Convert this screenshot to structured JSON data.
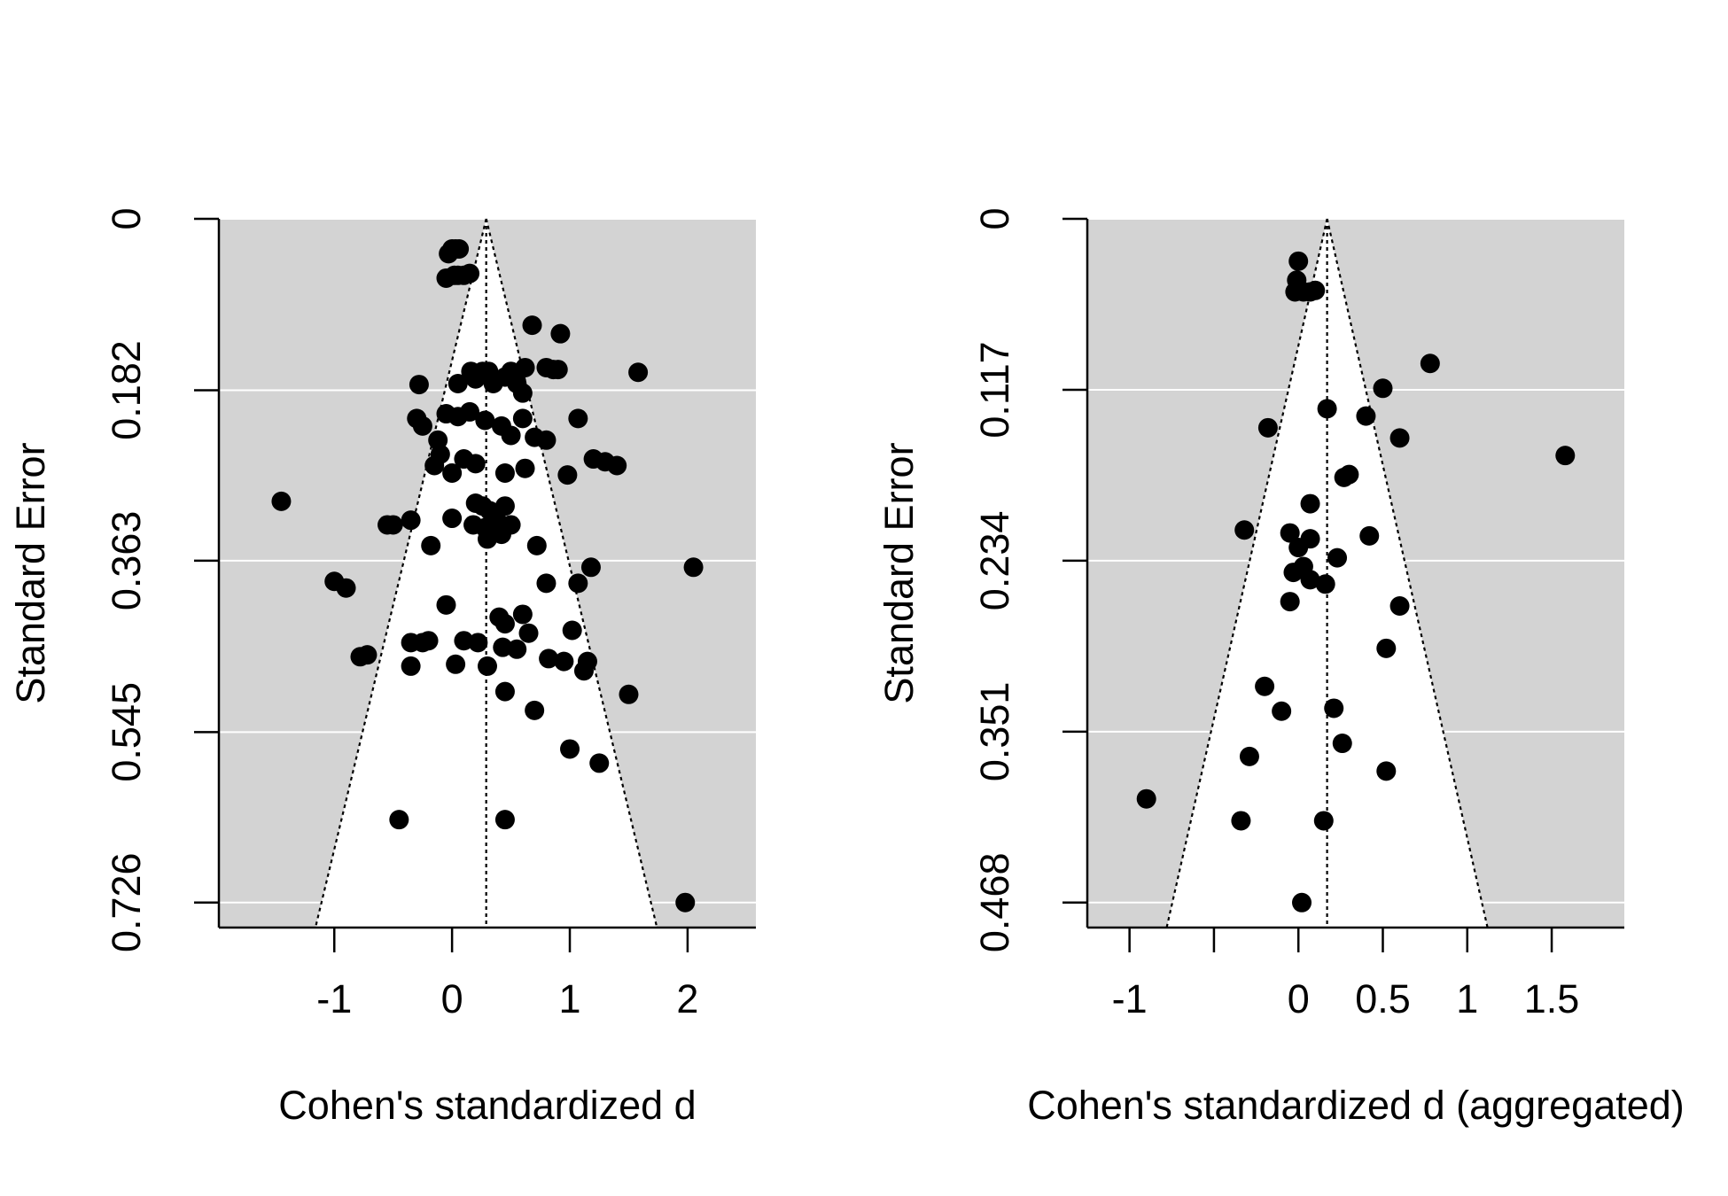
{
  "colors": {
    "panel_bg": "#d3d3d3",
    "funnel": "#ffffff",
    "points": "#000000",
    "axis": "#000000"
  },
  "chart_data": [
    {
      "type": "scatter",
      "subtype": "funnel",
      "xlabel": "Cohen's standardized d",
      "ylabel": "Standard Error",
      "xlim": [
        -1.98,
        2.58
      ],
      "ylim": [
        0.7526,
        0
      ],
      "x_ticks": [
        -1,
        0,
        1,
        2
      ],
      "x_tick_labels": [
        "-1",
        "0",
        "1",
        "2"
      ],
      "x_tick_marks": [
        -1,
        0,
        1,
        2
      ],
      "y_ticks": [
        0,
        0.182,
        0.363,
        0.545,
        0.726
      ],
      "y_tick_labels": [
        "0",
        "0.182",
        "0.363",
        "0.545",
        "0.726"
      ],
      "estimate": 0.29,
      "funnel_half_width_at_max_se": 1.45,
      "funnel_max_se": 0.7526,
      "points": [
        [
          0,
          0.032
        ],
        [
          0.03,
          0.032
        ],
        [
          0.06,
          0.032
        ],
        [
          -0.03,
          0.037
        ],
        [
          0.02,
          0.06
        ],
        [
          -0.05,
          0.063
        ],
        [
          0.05,
          0.06
        ],
        [
          0.1,
          0.06
        ],
        [
          0.15,
          0.058
        ],
        [
          0.68,
          0.113
        ],
        [
          0.92,
          0.122
        ],
        [
          0.16,
          0.162
        ],
        [
          0.26,
          0.162
        ],
        [
          0.31,
          0.162
        ],
        [
          0.5,
          0.162
        ],
        [
          0.62,
          0.158
        ],
        [
          0.8,
          0.158
        ],
        [
          0.86,
          0.16
        ],
        [
          0.9,
          0.16
        ],
        [
          1.58,
          0.163
        ],
        [
          0.2,
          0.17
        ],
        [
          0.45,
          0.168
        ],
        [
          0.05,
          0.175
        ],
        [
          0.35,
          0.175
        ],
        [
          0.55,
          0.175
        ],
        [
          0.6,
          0.185
        ],
        [
          -0.28,
          0.176
        ],
        [
          -0.3,
          0.212
        ],
        [
          -0.25,
          0.22
        ],
        [
          -0.05,
          0.207
        ],
        [
          0.05,
          0.21
        ],
        [
          0.15,
          0.205
        ],
        [
          0.28,
          0.214
        ],
        [
          0.42,
          0.22
        ],
        [
          0.6,
          0.212
        ],
        [
          1.07,
          0.212
        ],
        [
          -0.12,
          0.235
        ],
        [
          0.5,
          0.23
        ],
        [
          0.7,
          0.232
        ],
        [
          0.8,
          0.235
        ],
        [
          1.2,
          0.255
        ],
        [
          1.3,
          0.258
        ],
        [
          1.4,
          0.262
        ],
        [
          -0.1,
          0.25
        ],
        [
          0.1,
          0.255
        ],
        [
          0.2,
          0.26
        ],
        [
          0.45,
          0.27
        ],
        [
          0.62,
          0.265
        ],
        [
          0.98,
          0.272
        ],
        [
          -0.15,
          0.262
        ],
        [
          0,
          0.27
        ],
        [
          -1.45,
          0.3
        ],
        [
          -0.5,
          0.325
        ],
        [
          -0.55,
          0.325
        ],
        [
          -0.35,
          0.32
        ],
        [
          0,
          0.318
        ],
        [
          0.2,
          0.302
        ],
        [
          0.26,
          0.305
        ],
        [
          0.32,
          0.31
        ],
        [
          0.45,
          0.305
        ],
        [
          0.38,
          0.32
        ],
        [
          0.28,
          0.328
        ],
        [
          0.18,
          0.325
        ],
        [
          0.35,
          0.33
        ],
        [
          0.42,
          0.335
        ],
        [
          0.5,
          0.325
        ],
        [
          0.3,
          0.34
        ],
        [
          -0.18,
          0.347
        ],
        [
          0.72,
          0.347
        ],
        [
          2.05,
          0.37
        ],
        [
          1.18,
          0.37
        ],
        [
          -1,
          0.385
        ],
        [
          -0.9,
          0.392
        ],
        [
          0.8,
          0.387
        ],
        [
          1.07,
          0.387
        ],
        [
          -0.05,
          0.41
        ],
        [
          0.4,
          0.423
        ],
        [
          0.6,
          0.42
        ],
        [
          0.65,
          0.44
        ],
        [
          0.45,
          0.43
        ],
        [
          1.02,
          0.437
        ],
        [
          -0.35,
          0.45
        ],
        [
          -0.25,
          0.45
        ],
        [
          -0.2,
          0.448
        ],
        [
          0.1,
          0.448
        ],
        [
          0.22,
          0.45
        ],
        [
          0.43,
          0.455
        ],
        [
          0.55,
          0.457
        ],
        [
          -0.72,
          0.463
        ],
        [
          -0.78,
          0.465
        ],
        [
          0.82,
          0.467
        ],
        [
          0.95,
          0.47
        ],
        [
          1.15,
          0.47
        ],
        [
          -0.35,
          0.475
        ],
        [
          0.03,
          0.473
        ],
        [
          0.3,
          0.475
        ],
        [
          1.12,
          0.48
        ],
        [
          0.45,
          0.502
        ],
        [
          1.5,
          0.505
        ],
        [
          0.7,
          0.522
        ],
        [
          1,
          0.563
        ],
        [
          1.25,
          0.578
        ],
        [
          -0.45,
          0.638
        ],
        [
          0.45,
          0.638
        ],
        [
          1.98,
          0.726
        ]
      ]
    },
    {
      "type": "scatter",
      "subtype": "funnel",
      "xlabel": "Cohen's standardized d (aggregated)",
      "ylabel": "Standard Error",
      "xlim": [
        -1.25,
        1.93
      ],
      "ylim": [
        0.4851,
        0
      ],
      "x_ticks": [
        -1,
        0,
        0.5,
        1,
        1.5
      ],
      "x_tick_labels": [
        "-1",
        "0",
        "0.5",
        "1",
        "1.5"
      ],
      "x_tick_marks": [
        -1,
        -0.5,
        0,
        0.5,
        1,
        1.5
      ],
      "y_ticks": [
        0,
        0.117,
        0.234,
        0.351,
        0.468
      ],
      "y_tick_labels": [
        "0",
        "0.117",
        "0.234",
        "0.351",
        "0.468"
      ],
      "estimate": 0.17,
      "funnel_half_width_at_max_se": 0.95,
      "funnel_max_se": 0.4851,
      "points": [
        [
          0,
          0.029
        ],
        [
          -0.01,
          0.042
        ],
        [
          -0.02,
          0.05
        ],
        [
          0.03,
          0.05
        ],
        [
          0.07,
          0.05
        ],
        [
          0.1,
          0.049
        ],
        [
          0.78,
          0.099
        ],
        [
          0.5,
          0.116
        ],
        [
          0.17,
          0.13
        ],
        [
          0.4,
          0.135
        ],
        [
          -0.18,
          0.143
        ],
        [
          0.6,
          0.15
        ],
        [
          1.58,
          0.162
        ],
        [
          0.3,
          0.175
        ],
        [
          0.27,
          0.177
        ],
        [
          0.07,
          0.195
        ],
        [
          -0.32,
          0.213
        ],
        [
          -0.05,
          0.215
        ],
        [
          0.07,
          0.219
        ],
        [
          0.42,
          0.217
        ],
        [
          0,
          0.225
        ],
        [
          0.23,
          0.232
        ],
        [
          0.03,
          0.238
        ],
        [
          -0.03,
          0.242
        ],
        [
          0.07,
          0.247
        ],
        [
          0.16,
          0.25
        ],
        [
          -0.05,
          0.262
        ],
        [
          0.6,
          0.265
        ],
        [
          0.52,
          0.294
        ],
        [
          -0.2,
          0.32
        ],
        [
          0.21,
          0.335
        ],
        [
          -0.1,
          0.337
        ],
        [
          0.26,
          0.359
        ],
        [
          -0.29,
          0.368
        ],
        [
          0.52,
          0.378
        ],
        [
          -0.9,
          0.397
        ],
        [
          -0.34,
          0.412
        ],
        [
          0.15,
          0.412
        ],
        [
          0.02,
          0.468
        ]
      ]
    }
  ]
}
